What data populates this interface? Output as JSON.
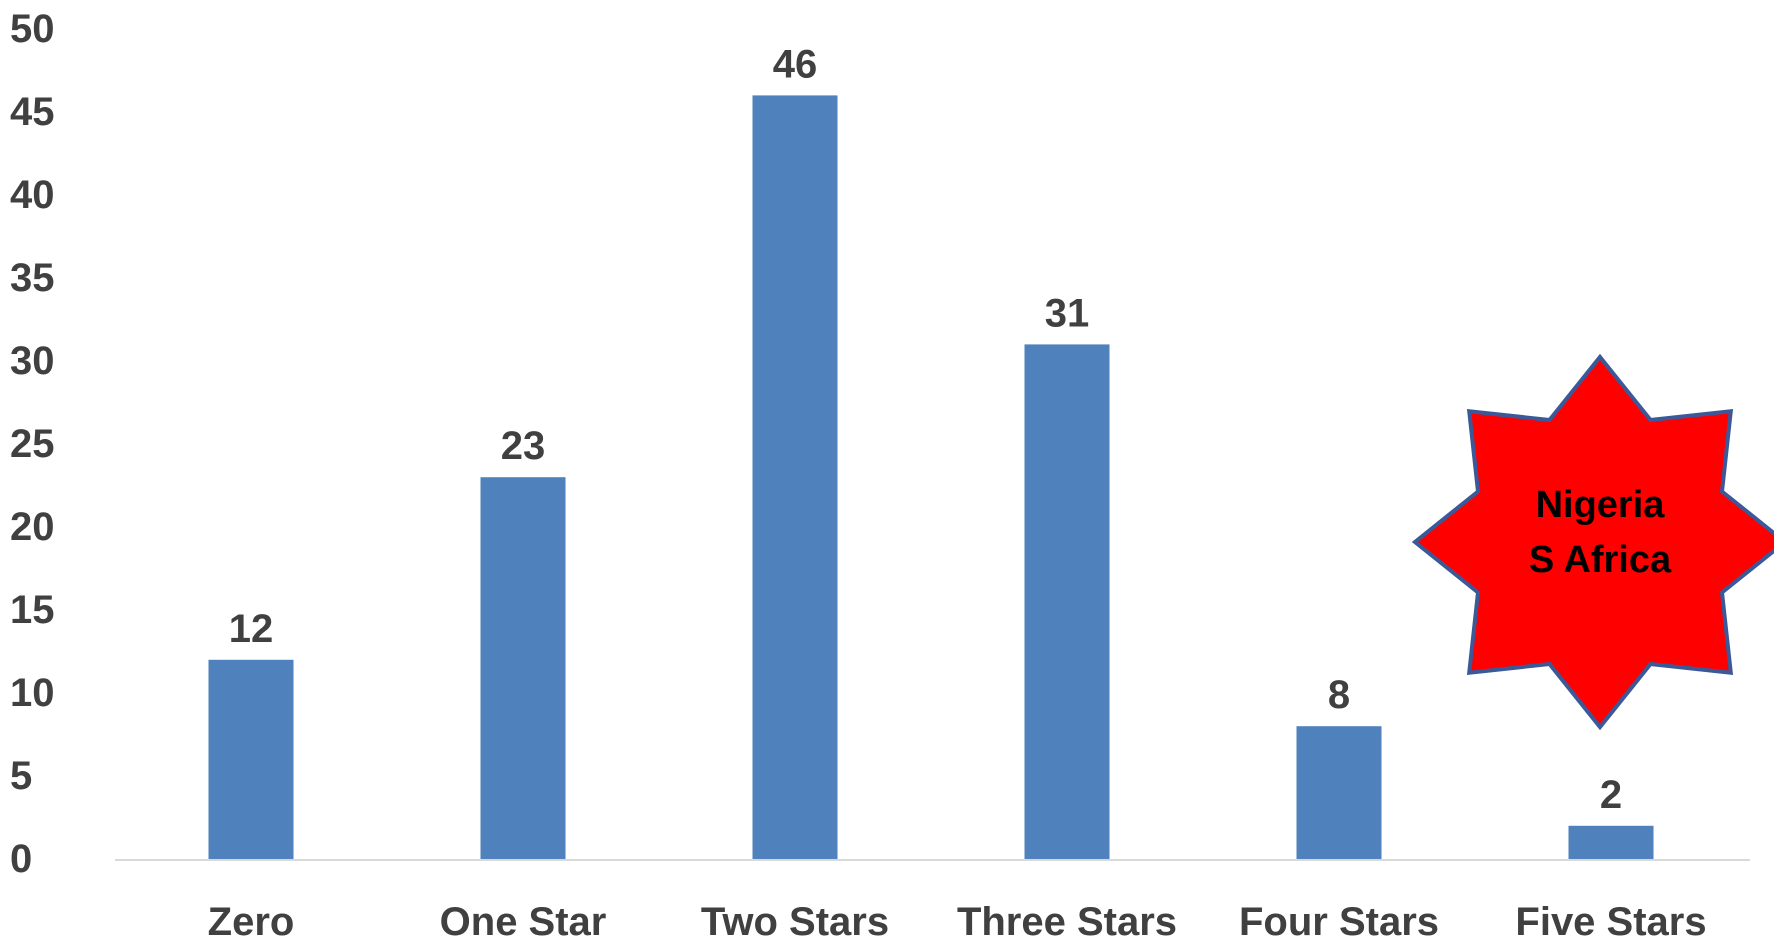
{
  "chart_data": {
    "type": "bar",
    "title": "",
    "xlabel": "",
    "ylabel": "",
    "categories": [
      "Zero",
      "One Star",
      "Two Stars",
      "Three Stars",
      "Four Stars",
      "Five Stars"
    ],
    "values": [
      12,
      23,
      46,
      31,
      8,
      2
    ],
    "data_labels": [
      "12",
      "23",
      "46",
      "31",
      "8",
      "2"
    ],
    "ylim": [
      0,
      50
    ],
    "y_ticks": [
      "0",
      "5",
      "10",
      "15",
      "20",
      "25",
      "30",
      "35",
      "40",
      "45",
      "50"
    ],
    "grid": false,
    "legend": "none",
    "colors": {
      "bar": "#4F81BD",
      "text": "#404040",
      "axis": "#D9D9D9",
      "callout_fill": "#FF0000",
      "callout_stroke": "#3B5998"
    },
    "annotation": {
      "shape": "star-burst",
      "lines": [
        "Nigeria",
        "S Africa"
      ]
    }
  }
}
